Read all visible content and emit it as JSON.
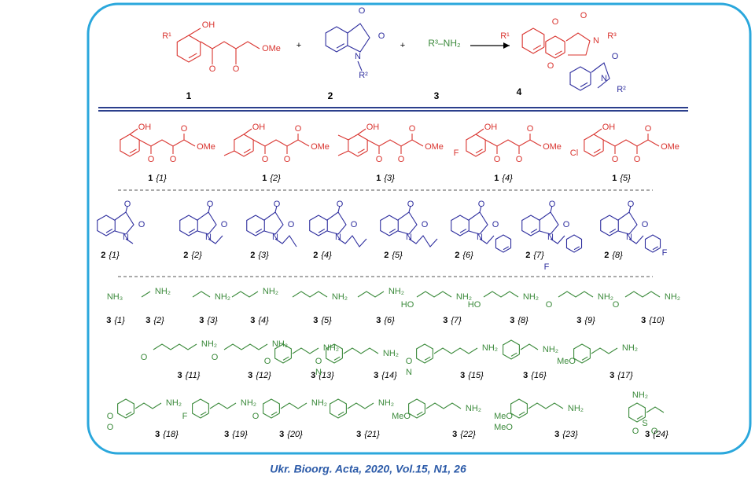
{
  "scheme": {
    "compound1": {
      "label": "1",
      "atoms": [
        "R¹",
        "OH",
        "O",
        "O",
        "OMe"
      ]
    },
    "compound2": {
      "label": "2",
      "atoms": [
        "O",
        "O",
        "N",
        "R²"
      ]
    },
    "compound3": {
      "label": "3",
      "formula": "R³–NH₂"
    },
    "compound4": {
      "label": "4",
      "atoms": [
        "R¹",
        "O",
        "O",
        "N",
        "R³",
        "O",
        "O",
        "N",
        "R²"
      ]
    },
    "plus": [
      "+",
      "+"
    ]
  },
  "series1": [
    {
      "number": "1",
      "index": "{1}",
      "atoms": [
        "OH",
        "O",
        "O",
        "O",
        "OMe"
      ]
    },
    {
      "number": "1",
      "index": "{2}",
      "atoms": [
        "OH",
        "O",
        "O",
        "O",
        "OMe"
      ]
    },
    {
      "number": "1",
      "index": "{3}",
      "atoms": [
        "OH",
        "O",
        "O",
        "O",
        "OMe"
      ]
    },
    {
      "number": "1",
      "index": "{4}",
      "atoms": [
        "OH",
        "O",
        "O",
        "O",
        "OMe",
        "F"
      ]
    },
    {
      "number": "1",
      "index": "{5}",
      "atoms": [
        "OH",
        "O",
        "O",
        "O",
        "OMe",
        "Cl"
      ]
    }
  ],
  "series2": [
    {
      "number": "2",
      "index": "{1}",
      "atoms": [
        "O",
        "O",
        "N"
      ]
    },
    {
      "number": "2",
      "index": "{2}",
      "atoms": [
        "O",
        "O",
        "N"
      ]
    },
    {
      "number": "2",
      "index": "{3}",
      "atoms": [
        "O",
        "O",
        "N"
      ]
    },
    {
      "number": "2",
      "index": "{4}",
      "atoms": [
        "O",
        "O",
        "N"
      ]
    },
    {
      "number": "2",
      "index": "{5}",
      "atoms": [
        "O",
        "O",
        "N"
      ]
    },
    {
      "number": "2",
      "index": "{6}",
      "atoms": [
        "O",
        "O",
        "N"
      ]
    },
    {
      "number": "2",
      "index": "{7}",
      "atoms": [
        "O",
        "O",
        "N",
        "F"
      ]
    },
    {
      "number": "2",
      "index": "{8}",
      "atoms": [
        "O",
        "O",
        "N",
        "F"
      ]
    }
  ],
  "series3": [
    {
      "number": "3",
      "index": "{1}",
      "atoms": [
        "NH₃"
      ]
    },
    {
      "number": "3",
      "index": "{2}",
      "atoms": [
        "NH₂"
      ]
    },
    {
      "number": "3",
      "index": "{3}",
      "atoms": [
        "NH₂"
      ]
    },
    {
      "number": "3",
      "index": "{4}",
      "atoms": [
        "NH₂"
      ]
    },
    {
      "number": "3",
      "index": "{5}",
      "atoms": [
        "NH₂"
      ]
    },
    {
      "number": "3",
      "index": "{6}",
      "atoms": [
        "NH₂"
      ]
    },
    {
      "number": "3",
      "index": "{7}",
      "atoms": [
        "HO",
        "NH₂"
      ]
    },
    {
      "number": "3",
      "index": "{8}",
      "atoms": [
        "HO",
        "NH₂"
      ]
    },
    {
      "number": "3",
      "index": "{9}",
      "atoms": [
        "O",
        "NH₂"
      ]
    },
    {
      "number": "3",
      "index": "{10}",
      "atoms": [
        "O",
        "NH₂"
      ]
    },
    {
      "number": "3",
      "index": "{11}",
      "atoms": [
        "O",
        "NH₂"
      ]
    },
    {
      "number": "3",
      "index": "{12}",
      "atoms": [
        "O",
        "NH₂"
      ]
    },
    {
      "number": "3",
      "index": "{13}",
      "atoms": [
        "O",
        "NH₂"
      ]
    },
    {
      "number": "3",
      "index": "{14}",
      "atoms": [
        "O",
        "N",
        "NH₂"
      ]
    },
    {
      "number": "3",
      "index": "{15}",
      "atoms": [
        "O",
        "N",
        "NH₂"
      ]
    },
    {
      "number": "3",
      "index": "{16}",
      "atoms": [
        "NH₂"
      ]
    },
    {
      "number": "3",
      "index": "{17}",
      "atoms": [
        "MeO",
        "NH₂"
      ]
    },
    {
      "number": "3",
      "index": "{18}",
      "atoms": [
        "O",
        "O",
        "NH₂"
      ]
    },
    {
      "number": "3",
      "index": "{19}",
      "atoms": [
        "F",
        "NH₂"
      ]
    },
    {
      "number": "3",
      "index": "{20}",
      "atoms": [
        "O",
        "NH₂"
      ]
    },
    {
      "number": "3",
      "index": "{21}",
      "atoms": [
        "NH₂"
      ]
    },
    {
      "number": "3",
      "index": "{22}",
      "atoms": [
        "MeO",
        "NH₂"
      ]
    },
    {
      "number": "3",
      "index": "{23}",
      "atoms": [
        "MeO",
        "MeO",
        "NH₂"
      ]
    },
    {
      "number": "3",
      "index": "{24}",
      "atoms": [
        "NH₂",
        "S",
        "O",
        "O"
      ]
    }
  ],
  "caption": "Ukr. Bioorg. Acta, 2020, Vol.15, N1, 26"
}
